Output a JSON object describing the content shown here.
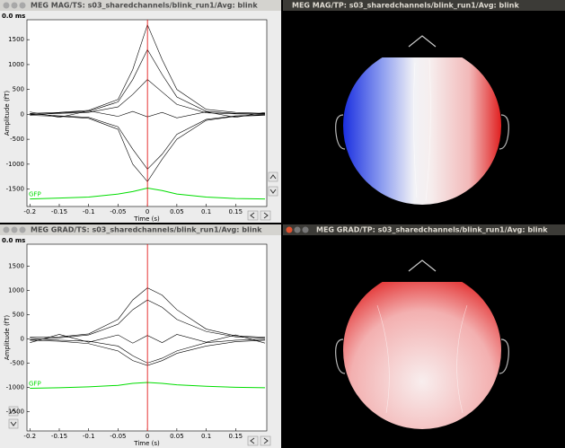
{
  "windows": [
    {
      "title": "MEG MAG/TS: s03_sharedchannels/blink_run1/Avg: blink"
    },
    {
      "title": "MEG MAG/TP: s03_sharedchannels/blink_run1/Avg: blink"
    },
    {
      "title": "MEG GRAD/TS: s03_sharedchannels/blink_run1/Avg: blink"
    },
    {
      "title": "MEG GRAD/TP: s03_sharedchannels/blink_run1/Avg: blink"
    }
  ],
  "chart_data": [
    {
      "type": "line",
      "time_label": "0.0 ms",
      "cursor_time": 0,
      "xlabel": "Time (s)",
      "ylabel": "Amplitude (fT)",
      "xlim": [
        -0.205,
        0.203
      ],
      "ylim": [
        -1850,
        1900
      ],
      "xticks": [
        -0.2,
        -0.15,
        -0.1,
        -0.05,
        0,
        0.05,
        0.1,
        0.15
      ],
      "yticks": [
        -1500,
        -1000,
        -500,
        0,
        500,
        1000,
        1500
      ],
      "x": [
        -0.2,
        -0.15,
        -0.1,
        -0.05,
        -0.025,
        0,
        0.025,
        0.05,
        0.1,
        0.15,
        0.2
      ],
      "series": [
        {
          "color": "#000000",
          "values": [
            20,
            40,
            80,
            300,
            900,
            1800,
            1100,
            500,
            100,
            40,
            20
          ]
        },
        {
          "color": "#000000",
          "values": [
            -10,
            30,
            60,
            250,
            700,
            1300,
            800,
            350,
            60,
            20,
            10
          ]
        },
        {
          "color": "#000000",
          "values": [
            0,
            20,
            40,
            150,
            400,
            700,
            450,
            200,
            30,
            10,
            0
          ]
        },
        {
          "color": "#000000",
          "values": [
            50,
            -60,
            70,
            -40,
            60,
            -50,
            40,
            -70,
            50,
            -60,
            40
          ]
        },
        {
          "color": "#000000",
          "values": [
            10,
            -30,
            -60,
            -250,
            -700,
            -1100,
            -800,
            -400,
            -100,
            -30,
            -10
          ]
        },
        {
          "color": "#000000",
          "values": [
            -20,
            -40,
            -80,
            -300,
            -1000,
            -1350,
            -900,
            -500,
            -120,
            -40,
            -20
          ]
        },
        {
          "name": "GFP",
          "color": "#00dd00",
          "values": [
            -1700,
            -1680,
            -1660,
            -1600,
            -1550,
            -1480,
            -1530,
            -1600,
            -1660,
            -1690,
            -1700
          ]
        }
      ]
    },
    {
      "type": "line",
      "time_label": "0.0 ms",
      "cursor_time": 0,
      "xlabel": "Time (s)",
      "ylabel": "Amplitude (fT)",
      "xlim": [
        -0.205,
        0.203
      ],
      "ylim": [
        -1900,
        1950
      ],
      "xticks": [
        -0.2,
        -0.15,
        -0.1,
        -0.05,
        0,
        0.05,
        0.1,
        0.15
      ],
      "yticks": [
        -1500,
        -1000,
        -500,
        0,
        500,
        1000,
        1500
      ],
      "x": [
        -0.2,
        -0.15,
        -0.1,
        -0.05,
        -0.025,
        0,
        0.025,
        0.05,
        0.1,
        0.15,
        0.2
      ],
      "series": [
        {
          "color": "#000000",
          "values": [
            30,
            40,
            100,
            400,
            800,
            1050,
            900,
            600,
            200,
            60,
            30
          ]
        },
        {
          "color": "#000000",
          "values": [
            -20,
            20,
            80,
            300,
            600,
            800,
            650,
            400,
            150,
            40,
            10
          ]
        },
        {
          "color": "#000000",
          "values": [
            -80,
            90,
            -70,
            80,
            -90,
            70,
            -80,
            90,
            -70,
            80,
            -90
          ]
        },
        {
          "color": "#000000",
          "values": [
            10,
            -30,
            -50,
            -150,
            -350,
            -500,
            -400,
            -250,
            -80,
            -30,
            -10
          ]
        },
        {
          "color": "#000000",
          "values": [
            -30,
            -50,
            -100,
            -250,
            -450,
            -550,
            -450,
            -300,
            -150,
            -60,
            -30
          ]
        },
        {
          "name": "GFP",
          "color": "#00dd00",
          "values": [
            -1020,
            -1010,
            -990,
            -960,
            -920,
            -900,
            -920,
            -950,
            -980,
            -1000,
            -1010
          ]
        }
      ]
    }
  ]
}
